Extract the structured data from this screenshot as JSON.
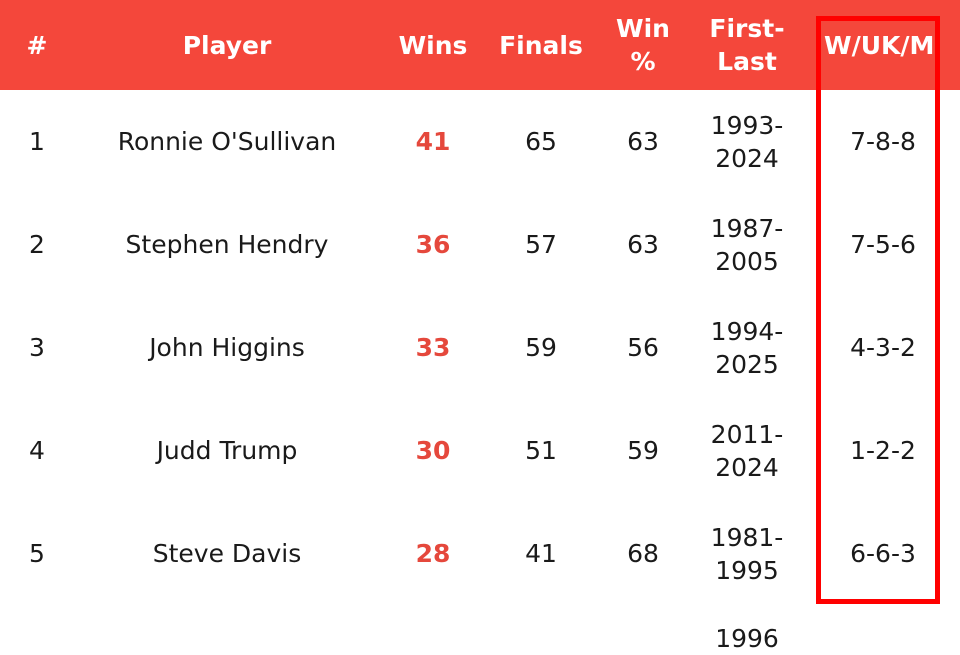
{
  "table": {
    "headers": [
      "#",
      "Player",
      "Wins",
      "Finals",
      "Win\n%",
      "First-\nLast",
      "W/UK/M"
    ],
    "rows": [
      [
        "1",
        "Ronnie O'Sullivan",
        "41",
        "65",
        "63",
        "1993-\n2024",
        "7-8-8"
      ],
      [
        "2",
        "Stephen Hendry",
        "36",
        "57",
        "63",
        "1987-\n2005",
        "7-5-6"
      ],
      [
        "3",
        "John Higgins",
        "33",
        "59",
        "56",
        "1994-\n2025",
        "4-3-2"
      ],
      [
        "4",
        "Judd Trump",
        "30",
        "51",
        "59",
        "2011-\n2024",
        "1-2-2"
      ],
      [
        "5",
        "Steve Davis",
        "28",
        "41",
        "68",
        "1981-\n1995",
        "6-6-3"
      ]
    ],
    "partial_row_first_last": "1996"
  },
  "colors": {
    "header_bg": "#f4473b",
    "wins_text": "#e5483c",
    "highlight_box": "#ff0000"
  }
}
